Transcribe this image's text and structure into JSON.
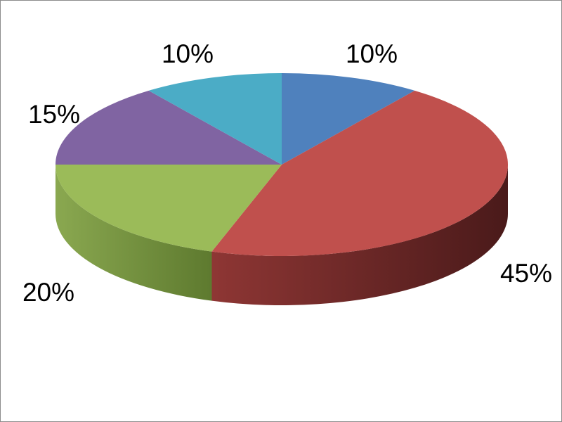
{
  "chart_data": {
    "type": "pie",
    "style": "3d",
    "start_angle": "top",
    "direction": "clockwise",
    "values": [
      10,
      45,
      20,
      15,
      10
    ],
    "labels": [
      "10%",
      "45%",
      "20%",
      "15%",
      "10%"
    ],
    "colors": [
      "#4F81BD",
      "#C0504D",
      "#9BBB59",
      "#8064A2",
      "#4BACC6"
    ],
    "side_colors": [
      "#3a6090",
      "#7a2e2c",
      "#6f8a3c",
      "#5a4578",
      "#318095"
    ],
    "legend": "none"
  }
}
